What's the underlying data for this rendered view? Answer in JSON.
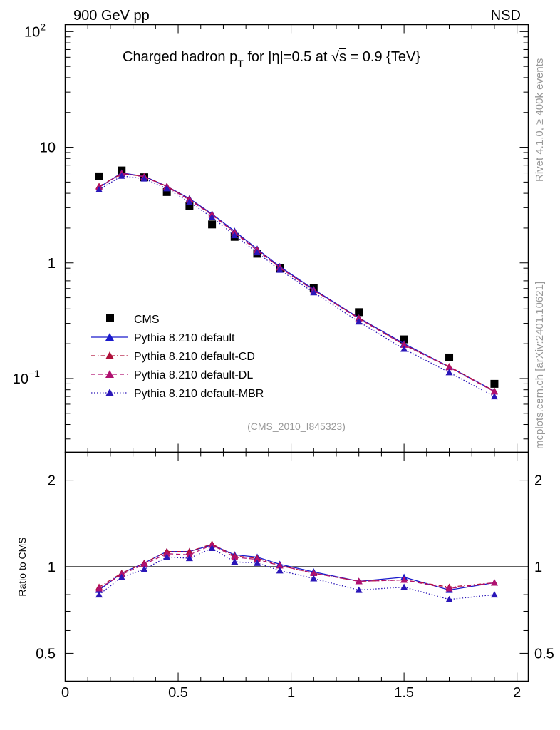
{
  "header": {
    "left": "900 GeV pp",
    "right": "NSD"
  },
  "side_text": {
    "rivet": "Rivet 4.1.0, ≥ 400k events",
    "mcplots": "mcplots.cern.ch [arXiv:2401.10621]"
  },
  "colors": {
    "cms": "#000000",
    "default": "#1a1acc",
    "cd": "#b0103a",
    "dl": "#b01070",
    "mbr": "#2a16b8",
    "axis": "#000000",
    "analysis_label": "#999999"
  },
  "chart_data": [
    {
      "type": "line",
      "panel": "main",
      "title_parts": {
        "t1": "Charged hadron p",
        "t1_sub": "T",
        "t2": " for |η|=0.5 at √",
        "t2_over": "s",
        "t3": " = 0.9 {TeV}"
      },
      "analysis_id": "(CMS_2010_I845323)",
      "yscale": "log",
      "xlim": [
        0,
        2.05
      ],
      "ylim": [
        0.023,
        115
      ],
      "y_tick_labels": [
        {
          "value": 100,
          "base": "10",
          "exp": "2"
        },
        {
          "value": 10,
          "base": "10",
          "exp": ""
        },
        {
          "value": 1,
          "base": "1",
          "exp": ""
        },
        {
          "value": 0.1,
          "base": "10",
          "exp": "−1"
        }
      ],
      "x": [
        0.15,
        0.25,
        0.35,
        0.45,
        0.55,
        0.65,
        0.75,
        0.85,
        0.95,
        1.1,
        1.3,
        1.5,
        1.7,
        1.9
      ],
      "series": [
        {
          "name": "CMS",
          "key": "cms",
          "style": "data",
          "values": [
            5.6,
            6.3,
            5.5,
            4.1,
            3.1,
            2.15,
            1.68,
            1.2,
            0.9,
            0.61,
            0.375,
            0.218,
            0.152,
            0.09
          ]
        },
        {
          "name": "Pythia 8.210 default",
          "key": "default",
          "style": "solid",
          "values": [
            4.5,
            6.0,
            5.6,
            4.6,
            3.6,
            2.65,
            1.88,
            1.32,
            0.93,
            0.59,
            0.335,
            0.2,
            0.126,
            0.078
          ]
        },
        {
          "name": "Pythia 8.210 default-CD",
          "key": "cd",
          "style": "dashdot",
          "values": [
            4.6,
            5.9,
            5.6,
            4.6,
            3.55,
            2.62,
            1.84,
            1.3,
            0.91,
            0.58,
            0.333,
            0.196,
            0.127,
            0.078
          ]
        },
        {
          "name": "Pythia 8.210 default-DL",
          "key": "dl",
          "style": "dashed",
          "values": [
            4.5,
            5.95,
            5.55,
            4.55,
            3.5,
            2.6,
            1.82,
            1.28,
            0.91,
            0.58,
            0.33,
            0.195,
            0.125,
            0.077
          ]
        },
        {
          "name": "Pythia 8.210 default-MBR",
          "key": "mbr",
          "style": "dotted",
          "values": [
            4.3,
            5.65,
            5.35,
            4.4,
            3.35,
            2.48,
            1.73,
            1.23,
            0.87,
            0.555,
            0.31,
            0.18,
            0.113,
            0.07
          ]
        }
      ]
    },
    {
      "type": "line",
      "panel": "ratio",
      "ylabel": "Ratio to CMS",
      "xlabel": "",
      "yscale": "log",
      "xlim": [
        0,
        2.05
      ],
      "ylim": [
        0.4,
        2.5
      ],
      "y_tick_labels": [
        {
          "value": 2,
          "label": "2"
        },
        {
          "value": 1,
          "label": "1"
        },
        {
          "value": 0.5,
          "label": "0.5"
        }
      ],
      "x_tick_labels": [
        {
          "value": 0,
          "label": "0"
        },
        {
          "value": 0.5,
          "label": "0.5"
        },
        {
          "value": 1,
          "label": "1"
        },
        {
          "value": 1.5,
          "label": "1.5"
        },
        {
          "value": 2,
          "label": "2"
        }
      ],
      "x": [
        0.15,
        0.25,
        0.35,
        0.45,
        0.55,
        0.65,
        0.75,
        0.85,
        0.95,
        1.1,
        1.3,
        1.5,
        1.7,
        1.9
      ],
      "series": [
        {
          "name": "Pythia 8.210 default",
          "key": "default",
          "style": "solid",
          "values": [
            0.83,
            0.95,
            1.03,
            1.13,
            1.13,
            1.19,
            1.1,
            1.08,
            1.02,
            0.96,
            0.89,
            0.92,
            0.83,
            0.88
          ]
        },
        {
          "name": "Pythia 8.210 default-CD",
          "key": "cd",
          "style": "dashdot",
          "values": [
            0.85,
            0.95,
            1.03,
            1.13,
            1.13,
            1.2,
            1.09,
            1.07,
            1.01,
            0.95,
            0.89,
            0.9,
            0.85,
            0.88
          ]
        },
        {
          "name": "Pythia 8.210 default-DL",
          "key": "dl",
          "style": "dashed",
          "values": [
            0.84,
            0.94,
            1.02,
            1.11,
            1.1,
            1.19,
            1.08,
            1.06,
            1.01,
            0.95,
            0.89,
            0.9,
            0.84,
            0.88
          ]
        },
        {
          "name": "Pythia 8.210 default-MBR",
          "key": "mbr",
          "style": "dotted",
          "values": [
            0.8,
            0.92,
            0.98,
            1.08,
            1.07,
            1.16,
            1.04,
            1.03,
            0.97,
            0.91,
            0.83,
            0.85,
            0.77,
            0.8
          ]
        }
      ]
    }
  ]
}
